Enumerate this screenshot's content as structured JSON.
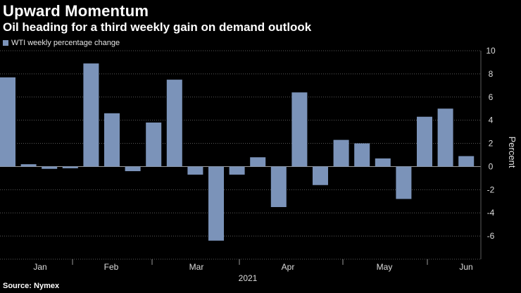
{
  "chart_data": {
    "type": "bar",
    "title": "Upward Momentum",
    "subtitle": "Oil heading for a third weekly gain on demand outlook",
    "legend": [
      "WTI weekly percentage change"
    ],
    "series": [
      {
        "name": "WTI weekly percentage change",
        "values": [
          7.7,
          0.2,
          -0.2,
          -0.15,
          8.9,
          4.6,
          -0.4,
          3.8,
          7.5,
          -0.7,
          -6.4,
          -0.7,
          0.8,
          -3.5,
          6.4,
          -1.6,
          2.3,
          2.0,
          0.7,
          -2.8,
          4.3,
          5.0,
          0.9
        ]
      }
    ],
    "x_month_labels": [
      "Jan",
      "Feb",
      "Mar",
      "Apr",
      "May",
      "Jun"
    ],
    "x_year_label": "2021",
    "ylabel": "Percent",
    "ylim": [
      -8,
      10
    ],
    "yticks": [
      "10",
      "8",
      "6",
      "4",
      "2",
      "0",
      "-2",
      "-4",
      "-6"
    ],
    "source": "Source: Nymex",
    "colors": {
      "bar": "#7b93b9",
      "grid": "#5a5a5a",
      "zero": "#9a9a9a"
    }
  }
}
